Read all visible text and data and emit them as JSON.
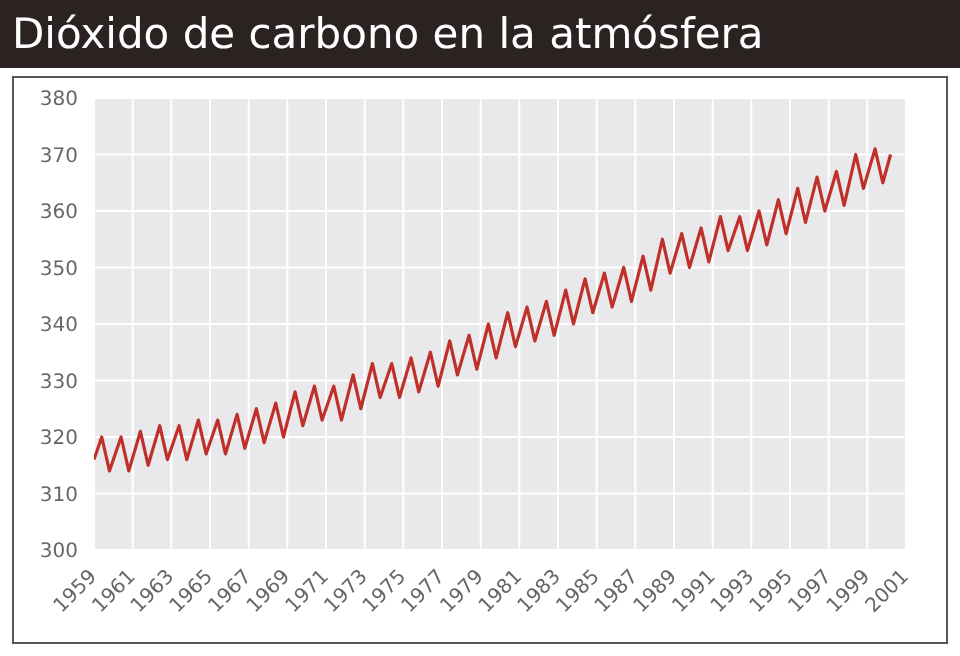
{
  "chart_data": {
    "type": "line",
    "title": "Dióxido de carbono en la atmósfera",
    "xlim": [
      1959,
      2001
    ],
    "xticks": [
      1959,
      1961,
      1963,
      1965,
      1967,
      1969,
      1971,
      1973,
      1975,
      1977,
      1979,
      1981,
      1983,
      1985,
      1987,
      1989,
      1991,
      1993,
      1995,
      1997,
      1999,
      2001
    ],
    "ylim": [
      300,
      380
    ],
    "yticks": [
      300,
      310,
      320,
      330,
      340,
      350,
      360,
      370,
      380
    ],
    "grid": true,
    "legend": false,
    "marker": "none",
    "line_style": "solid",
    "series": [
      {
        "color": "#c0302a",
        "x": [
          1959,
          1959.4,
          1959.8,
          1960.4,
          1960.8,
          1961.4,
          1961.8,
          1962.4,
          1962.8,
          1963.4,
          1963.8,
          1964.4,
          1964.8,
          1965.4,
          1965.8,
          1966.4,
          1966.8,
          1967.4,
          1967.8,
          1968.4,
          1968.8,
          1969.4,
          1969.8,
          1970.4,
          1970.8,
          1971.4,
          1971.8,
          1972.4,
          1972.8,
          1973.4,
          1973.8,
          1974.4,
          1974.8,
          1975.4,
          1975.8,
          1976.4,
          1976.8,
          1977.4,
          1977.8,
          1978.4,
          1978.8,
          1979.4,
          1979.8,
          1980.4,
          1980.8,
          1981.4,
          1981.8,
          1982.4,
          1982.8,
          1983.4,
          1983.8,
          1984.4,
          1984.8,
          1985.4,
          1985.8,
          1986.4,
          1986.8,
          1987.4,
          1987.8,
          1988.4,
          1988.8,
          1989.4,
          1989.8,
          1990.4,
          1990.8,
          1991.4,
          1991.8,
          1992.4,
          1992.8,
          1993.4,
          1993.8,
          1994.4,
          1994.8,
          1995.4,
          1995.8,
          1996.4,
          1996.8,
          1997.4,
          1997.8,
          1998.4,
          1998.8,
          1999.4,
          1999.8,
          2000.2
        ],
        "values": [
          316,
          320,
          314,
          320,
          314,
          321,
          315,
          322,
          316,
          322,
          316,
          323,
          317,
          323,
          317,
          324,
          318,
          325,
          319,
          326,
          320,
          328,
          322,
          329,
          323,
          329,
          323,
          331,
          325,
          333,
          327,
          333,
          327,
          334,
          328,
          335,
          329,
          337,
          331,
          338,
          332,
          340,
          334,
          342,
          336,
          343,
          337,
          344,
          338,
          346,
          340,
          348,
          342,
          349,
          343,
          350,
          344,
          352,
          346,
          355,
          349,
          356,
          350,
          357,
          351,
          359,
          353,
          359,
          353,
          360,
          354,
          362,
          356,
          364,
          358,
          366,
          360,
          367,
          361,
          370,
          364,
          371,
          365,
          370
        ]
      }
    ]
  }
}
